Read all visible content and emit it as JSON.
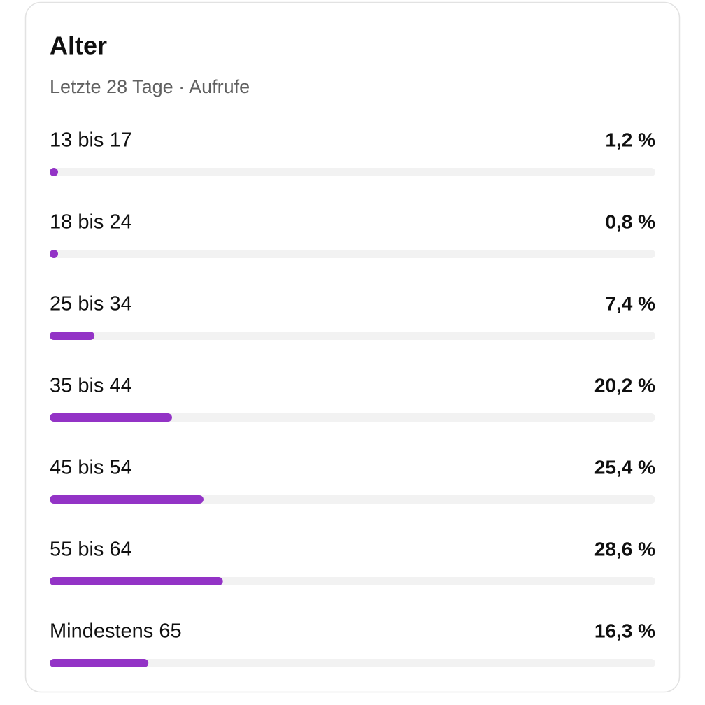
{
  "chart_data": {
    "type": "bar",
    "orientation": "horizontal",
    "title": "Alter",
    "subtitle": "Letzte 28 Tage · Aufrufe",
    "categories": [
      "13 bis 17",
      "18 bis 24",
      "25 bis 34",
      "35 bis 44",
      "45 bis 54",
      "55 bis 64",
      "Mindestens 65"
    ],
    "values": [
      1.2,
      0.8,
      7.4,
      20.2,
      25.4,
      28.6,
      16.3
    ],
    "value_labels": [
      "1,2 %",
      "0,8 %",
      "7,4 %",
      "20,2 %",
      "25,4 %",
      "28,6 %",
      "16,3 %"
    ],
    "color": "#9333c6",
    "xlim": [
      0,
      100
    ]
  }
}
